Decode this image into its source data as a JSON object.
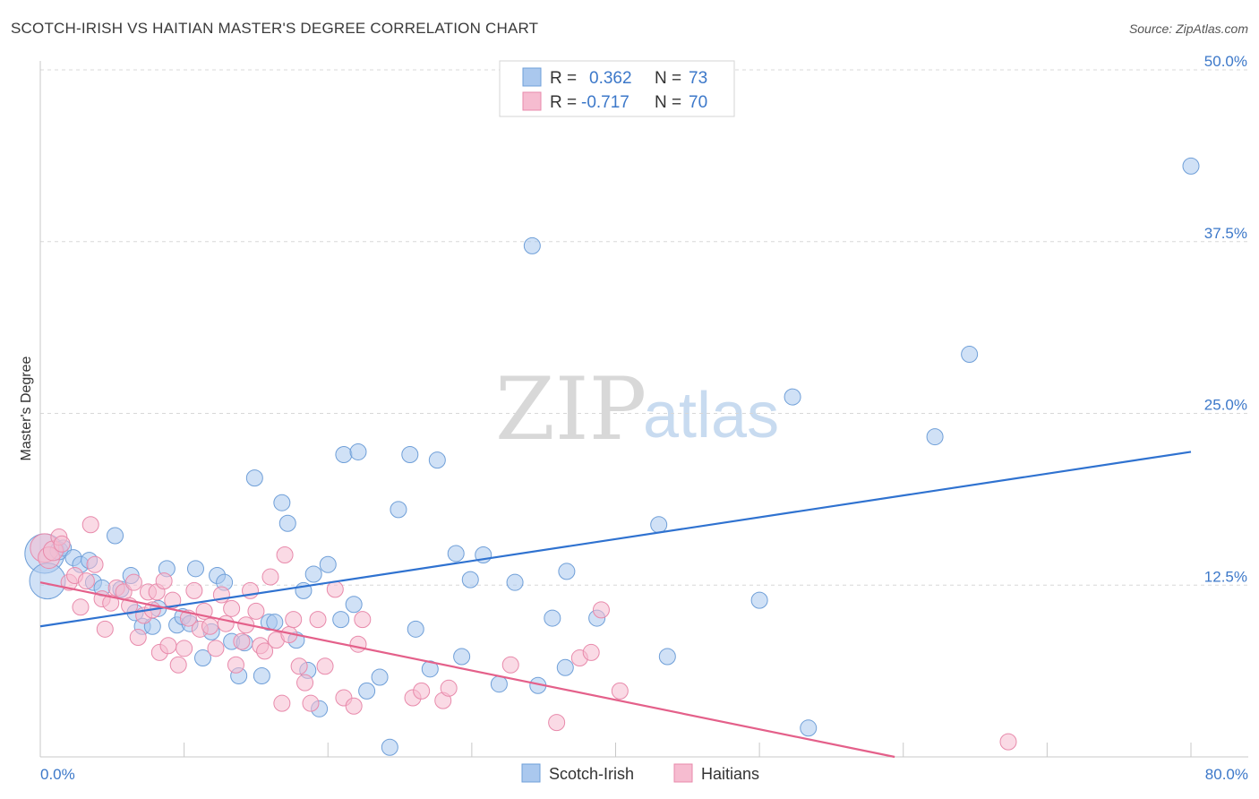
{
  "title": "SCOTCH-IRISH VS HAITIAN MASTER'S DEGREE CORRELATION CHART",
  "source": "Source: ZipAtlas.com",
  "watermark": {
    "zip": "ZIP",
    "atlas": "atlas"
  },
  "colors": {
    "blue_fill": "#aac8ee",
    "blue_stroke": "#6f9fd8",
    "blue_line": "#2f72d0",
    "pink_fill": "#f6bcd0",
    "pink_stroke": "#e88aab",
    "pink_line": "#e4608a",
    "tick_text": "#3c78c9",
    "grid": "#d8d8d8"
  },
  "chart_data": {
    "type": "scatter",
    "xlabel": "",
    "ylabel": "Master's Degree",
    "xlim": [
      0,
      80
    ],
    "ylim": [
      0,
      50
    ],
    "x_tick_labels": [
      {
        "value": 0,
        "label": "0.0%"
      },
      {
        "value": 80,
        "label": "80.0%"
      }
    ],
    "y_tick_labels": [
      {
        "value": 12.5,
        "label": "12.5%"
      },
      {
        "value": 25.0,
        "label": "25.0%"
      },
      {
        "value": 37.5,
        "label": "37.5%"
      },
      {
        "value": 50.0,
        "label": "50.0%"
      }
    ],
    "legend": [
      {
        "name": "Scotch-Irish",
        "r_label": "R =",
        "r": "0.362",
        "n_label": "N =",
        "n": "73"
      },
      {
        "name": "Haitians",
        "r_label": "R =",
        "r": "-0.717",
        "n_label": "N =",
        "n": "70"
      }
    ],
    "series": [
      {
        "name": "Scotch-Irish",
        "color": "blue",
        "trend": {
          "x0": 0,
          "y0": 9.5,
          "x1": 80,
          "y1": 22.2
        },
        "points": [
          [
            0.3,
            14.8,
            22
          ],
          [
            0.5,
            12.8,
            20
          ],
          [
            1.3,
            15.0,
            10
          ],
          [
            1.6,
            15.2,
            9
          ],
          [
            2.3,
            14.5,
            9
          ],
          [
            2.8,
            14.0,
            9
          ],
          [
            3.4,
            14.3,
            9
          ],
          [
            3.7,
            12.7,
            9
          ],
          [
            4.3,
            12.3,
            9
          ],
          [
            5.2,
            16.1,
            9
          ],
          [
            5.6,
            12.2,
            9
          ],
          [
            6.3,
            13.2,
            9
          ],
          [
            6.6,
            10.5,
            9
          ],
          [
            7.1,
            9.5,
            9
          ],
          [
            7.8,
            9.5,
            9
          ],
          [
            8.2,
            10.8,
            9
          ],
          [
            8.8,
            13.7,
            9
          ],
          [
            9.5,
            9.6,
            9
          ],
          [
            9.9,
            10.2,
            9
          ],
          [
            10.4,
            9.7,
            9
          ],
          [
            10.8,
            13.7,
            9
          ],
          [
            11.3,
            7.2,
            9
          ],
          [
            11.9,
            9.1,
            9
          ],
          [
            12.3,
            13.2,
            9
          ],
          [
            12.8,
            12.7,
            9
          ],
          [
            13.3,
            8.4,
            9
          ],
          [
            13.8,
            5.9,
            9
          ],
          [
            14.2,
            8.3,
            9
          ],
          [
            14.9,
            20.3,
            9
          ],
          [
            15.4,
            5.9,
            9
          ],
          [
            15.9,
            9.8,
            9
          ],
          [
            16.3,
            9.8,
            9
          ],
          [
            16.8,
            18.5,
            9
          ],
          [
            17.2,
            17.0,
            9
          ],
          [
            17.8,
            8.5,
            9
          ],
          [
            18.3,
            12.1,
            9
          ],
          [
            18.6,
            6.3,
            9
          ],
          [
            19.0,
            13.3,
            9
          ],
          [
            19.4,
            3.5,
            9
          ],
          [
            20.0,
            14.0,
            9
          ],
          [
            20.9,
            10.0,
            9
          ],
          [
            21.1,
            22.0,
            9
          ],
          [
            21.8,
            11.1,
            9
          ],
          [
            22.1,
            22.2,
            9
          ],
          [
            22.7,
            4.8,
            9
          ],
          [
            23.6,
            5.8,
            9
          ],
          [
            24.3,
            0.7,
            9
          ],
          [
            24.9,
            18.0,
            9
          ],
          [
            25.7,
            22.0,
            9
          ],
          [
            26.1,
            9.3,
            9
          ],
          [
            27.1,
            6.4,
            9
          ],
          [
            27.6,
            21.6,
            9
          ],
          [
            28.9,
            14.8,
            9
          ],
          [
            29.3,
            7.3,
            9
          ],
          [
            29.9,
            12.9,
            9
          ],
          [
            30.8,
            14.7,
            9
          ],
          [
            31.9,
            5.3,
            9
          ],
          [
            33.0,
            12.7,
            9
          ],
          [
            34.2,
            37.2,
            9
          ],
          [
            34.6,
            5.2,
            9
          ],
          [
            35.6,
            10.1,
            9
          ],
          [
            36.5,
            6.5,
            9
          ],
          [
            36.6,
            13.5,
            9
          ],
          [
            38.7,
            10.1,
            9
          ],
          [
            43.0,
            16.9,
            9
          ],
          [
            43.6,
            7.3,
            9
          ],
          [
            50.0,
            11.4,
            9
          ],
          [
            52.3,
            26.2,
            9
          ],
          [
            53.4,
            2.1,
            9
          ],
          [
            62.2,
            23.3,
            9
          ],
          [
            64.6,
            29.3,
            9
          ],
          [
            80.0,
            43.0,
            9
          ]
        ]
      },
      {
        "name": "Haitians",
        "color": "pink",
        "trend": {
          "x0": 0,
          "y0": 12.7,
          "x1": 59.4,
          "y1": 0.0
        },
        "points": [
          [
            0.3,
            15.2,
            16
          ],
          [
            0.6,
            14.5,
            12
          ],
          [
            0.9,
            15.0,
            11
          ],
          [
            1.3,
            16.0,
            9
          ],
          [
            1.5,
            15.5,
            9
          ],
          [
            2.0,
            12.7,
            9
          ],
          [
            2.4,
            13.2,
            9
          ],
          [
            2.8,
            10.9,
            9
          ],
          [
            3.2,
            12.8,
            9
          ],
          [
            3.5,
            16.9,
            9
          ],
          [
            3.8,
            14.0,
            9
          ],
          [
            4.3,
            11.5,
            9
          ],
          [
            4.5,
            9.3,
            9
          ],
          [
            4.9,
            11.2,
            9
          ],
          [
            5.3,
            12.3,
            9
          ],
          [
            5.8,
            12.0,
            9
          ],
          [
            6.2,
            11.0,
            9
          ],
          [
            6.5,
            12.7,
            9
          ],
          [
            6.8,
            8.7,
            9
          ],
          [
            7.2,
            10.3,
            9
          ],
          [
            7.5,
            12.0,
            9
          ],
          [
            7.8,
            10.7,
            9
          ],
          [
            8.1,
            12.0,
            9
          ],
          [
            8.3,
            7.6,
            9
          ],
          [
            8.6,
            12.8,
            9
          ],
          [
            8.9,
            8.1,
            9
          ],
          [
            9.2,
            11.4,
            9
          ],
          [
            9.6,
            6.7,
            9
          ],
          [
            10.0,
            7.9,
            9
          ],
          [
            10.3,
            10.1,
            9
          ],
          [
            10.7,
            12.1,
            9
          ],
          [
            11.1,
            9.3,
            9
          ],
          [
            11.4,
            10.6,
            9
          ],
          [
            11.8,
            9.5,
            9
          ],
          [
            12.2,
            7.9,
            9
          ],
          [
            12.6,
            11.8,
            9
          ],
          [
            12.9,
            9.7,
            9
          ],
          [
            13.3,
            10.8,
            9
          ],
          [
            13.6,
            6.7,
            9
          ],
          [
            14.0,
            8.4,
            9
          ],
          [
            14.3,
            9.6,
            9
          ],
          [
            14.6,
            12.1,
            9
          ],
          [
            15.0,
            10.6,
            9
          ],
          [
            15.3,
            8.1,
            9
          ],
          [
            15.6,
            7.7,
            9
          ],
          [
            16.0,
            13.1,
            9
          ],
          [
            16.4,
            8.5,
            9
          ],
          [
            16.8,
            3.9,
            9
          ],
          [
            17.3,
            8.9,
            9
          ],
          [
            17.6,
            10.0,
            9
          ],
          [
            18.0,
            6.6,
            9
          ],
          [
            18.4,
            5.4,
            9
          ],
          [
            18.8,
            3.9,
            9
          ],
          [
            19.3,
            10.0,
            9
          ],
          [
            19.8,
            6.6,
            9
          ],
          [
            20.5,
            12.2,
            9
          ],
          [
            21.1,
            4.3,
            9
          ],
          [
            21.8,
            3.7,
            9
          ],
          [
            22.1,
            8.2,
            9
          ],
          [
            22.4,
            10.0,
            9
          ],
          [
            25.9,
            4.3,
            9
          ],
          [
            26.5,
            4.8,
            9
          ],
          [
            28.0,
            4.1,
            9
          ],
          [
            28.4,
            5.0,
            9
          ],
          [
            32.7,
            6.7,
            9
          ],
          [
            35.9,
            2.5,
            9
          ],
          [
            37.5,
            7.2,
            9
          ],
          [
            38.3,
            7.6,
            9
          ],
          [
            39.0,
            10.7,
            9
          ],
          [
            40.3,
            4.8,
            9
          ],
          [
            67.3,
            1.1,
            9
          ],
          [
            17.0,
            14.7,
            9
          ]
        ]
      }
    ]
  }
}
